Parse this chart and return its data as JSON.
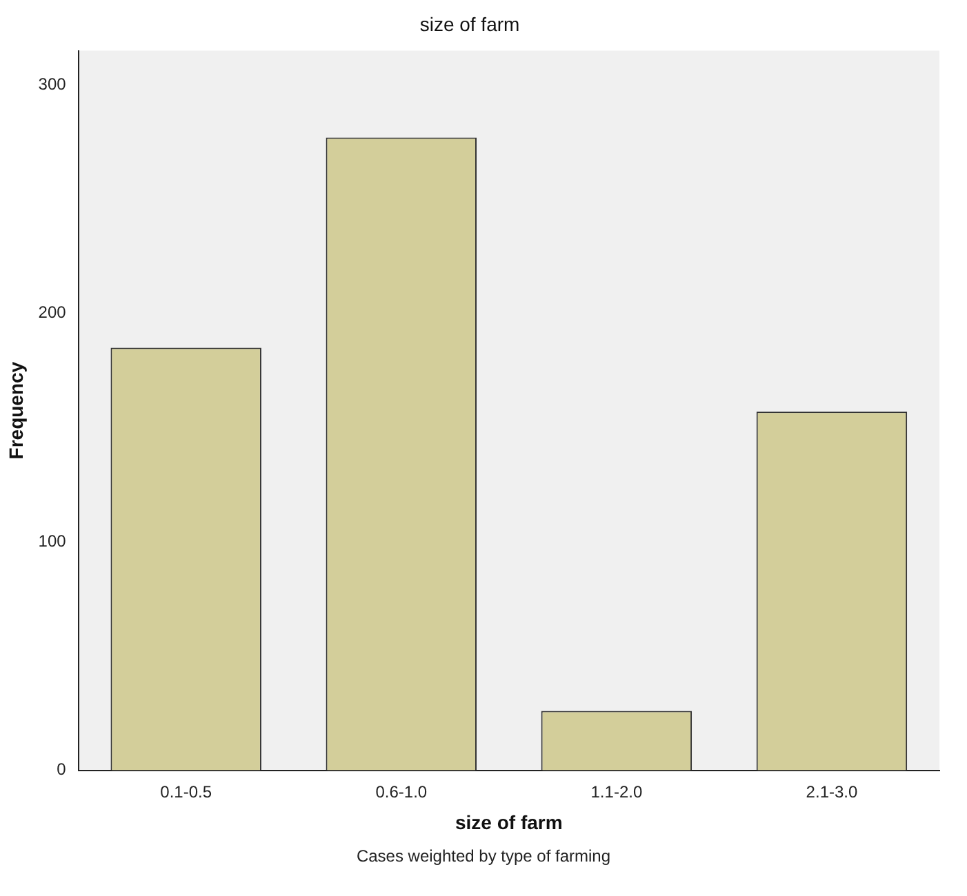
{
  "chart_data": {
    "type": "bar",
    "title": "size of farm",
    "xlabel": "size of farm",
    "ylabel": "Frequency",
    "categories": [
      "0.1-0.5",
      "0.6-1.0",
      "1.1-2.0",
      "2.1-3.0"
    ],
    "values": [
      185,
      277,
      26,
      157
    ],
    "color": "#d3ce9a",
    "ylim": [
      0,
      315
    ],
    "yticks": [
      0,
      100,
      200,
      300
    ],
    "grid": false,
    "legend": false,
    "annotations": [
      "Cases weighted by type of farming"
    ]
  }
}
